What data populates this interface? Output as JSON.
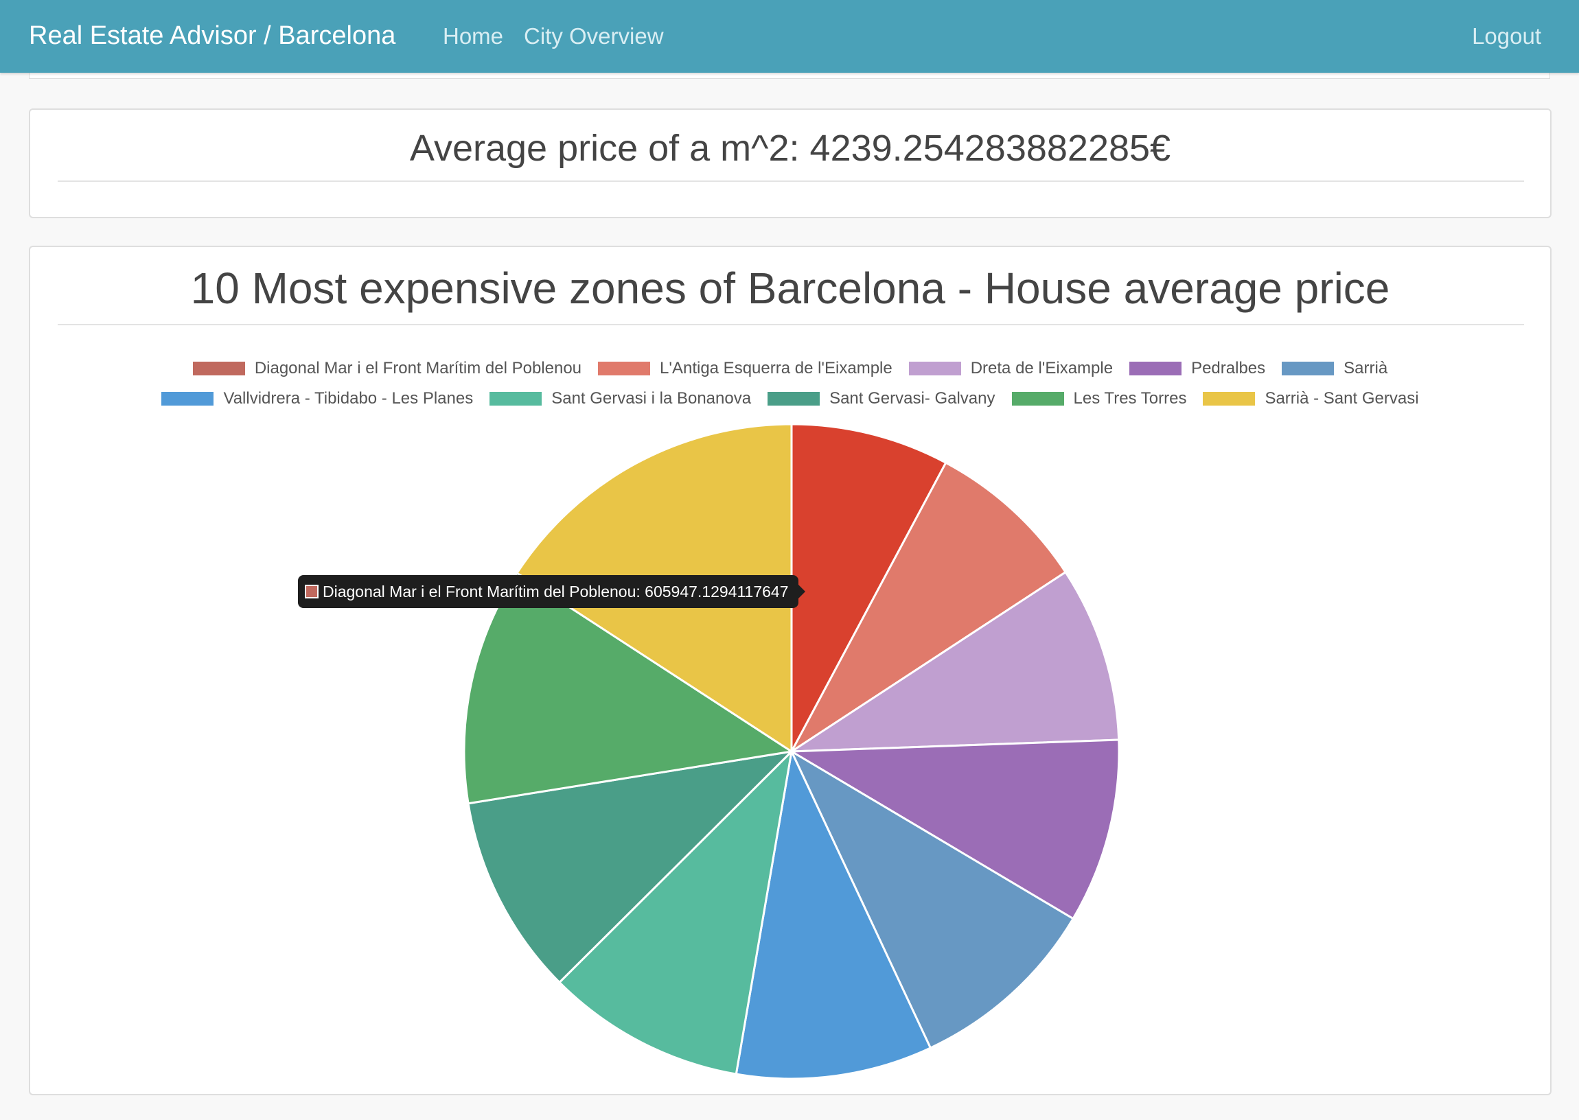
{
  "navbar": {
    "brand": "Real Estate Advisor / Barcelona",
    "links": [
      "Home",
      "City Overview"
    ],
    "logout": "Logout"
  },
  "average_panel": {
    "title": "Average price of a m^2: 4239.254283882285€"
  },
  "chart_panel": {
    "title": "10 Most expensive zones of Barcelona - House average price"
  },
  "tooltip": {
    "label": "Diagonal Mar i el Front Marítim del Poblenou",
    "value": "605947.1294117647",
    "text": "Diagonal Mar i el Front Marítim del Poblenou: 605947.1294117647",
    "swatch_color": "#c0695e"
  },
  "chart_data": {
    "type": "pie",
    "title": "10 Most expensive zones of Barcelona - House average price",
    "legend_position": "top",
    "categories": [
      "Diagonal Mar i el Front Marítim del Poblenou",
      "L'Antiga Esquerra de l'Eixample",
      "Dreta de l'Eixample",
      "Pedralbes",
      "Sarrià",
      "Vallvidrera - Tibidabo - Les Planes",
      "Sant Gervasi i la Bonanova",
      "Sant Gervasi- Galvany",
      "Les Tres Torres",
      "Sarrià - Sant Gervasi"
    ],
    "values": [
      605947.13,
      618000,
      672000,
      706000,
      737000,
      751000,
      763000,
      770000,
      909000,
      1228000
    ],
    "legend_colors": [
      "#c0695e",
      "#e07a6b",
      "#c09fd0",
      "#9b6db6",
      "#6798c3",
      "#519ad8",
      "#57bb9e",
      "#4a9e88",
      "#56ab69",
      "#e9c547"
    ],
    "slice_colors": [
      "#d9412e",
      "#e07a6b",
      "#c09fd0",
      "#9b6db6",
      "#6798c3",
      "#519ad8",
      "#57bb9e",
      "#4a9e88",
      "#56ab69",
      "#e9c547"
    ]
  }
}
